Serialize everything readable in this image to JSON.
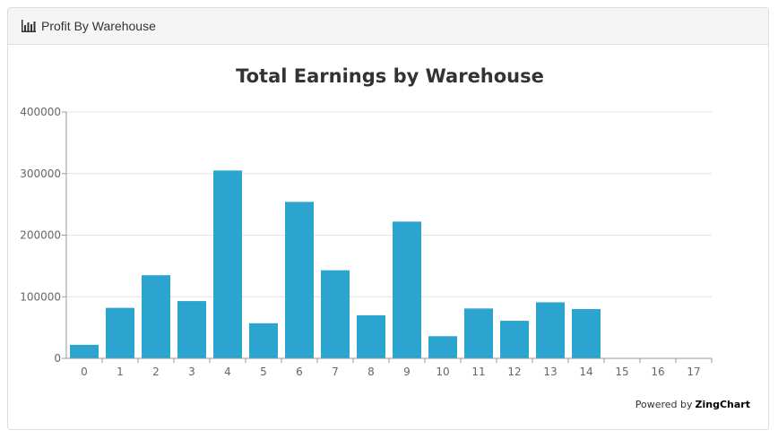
{
  "panel": {
    "heading": "Profit By Warehouse",
    "heading_icon": "bar-chart-icon"
  },
  "powered_by": {
    "prefix": "Powered by",
    "brand": "ZingChart"
  },
  "colors": {
    "bar": "#2ba4cf",
    "grid": "#e3e3e3",
    "axis": "#999999",
    "label": "#666666",
    "title": "#333333"
  },
  "chart_data": {
    "type": "bar",
    "title": "Total Earnings by Warehouse",
    "categories": [
      "0",
      "1",
      "2",
      "3",
      "4",
      "5",
      "6",
      "7",
      "8",
      "9",
      "10",
      "11",
      "12",
      "13",
      "14",
      "15",
      "16",
      "17"
    ],
    "values": [
      22000,
      82000,
      135000,
      93000,
      305000,
      57000,
      254000,
      143000,
      70000,
      222000,
      36000,
      81000,
      61000,
      91000,
      80000,
      0,
      0,
      0
    ],
    "ylim": [
      0,
      400000
    ],
    "yticks": [
      "0",
      "100000",
      "200000",
      "300000",
      "400000"
    ],
    "grid": true
  }
}
